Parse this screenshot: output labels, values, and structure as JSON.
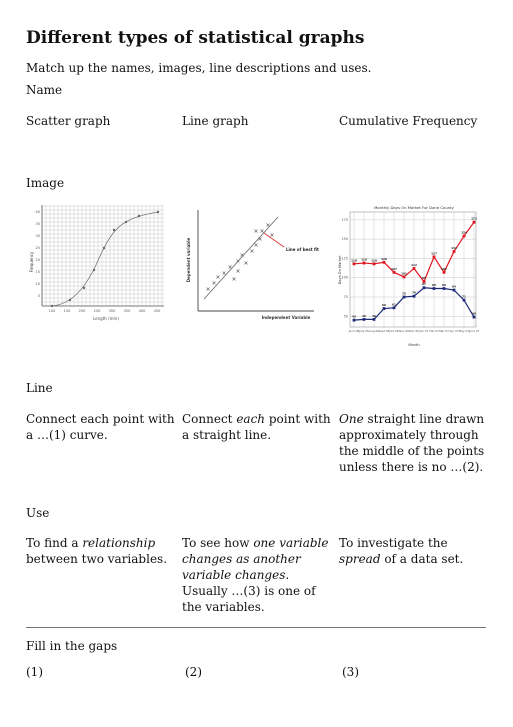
{
  "title": "Different types of statistical graphs",
  "instruction": "Match up the names, images, line descriptions and uses.",
  "sections": {
    "name": "Name",
    "image": "Image",
    "line": "Line",
    "use": "Use",
    "fill": "Fill in the gaps"
  },
  "names": [
    "Scatter graph",
    "Line graph",
    "Cumulative Frequency"
  ],
  "lines": {
    "c1": "Connect each point with a …(1) curve.",
    "c2_pre": "Connect ",
    "c2_em": "each",
    "c2_post": " point with a straight line.",
    "c3_em": "One",
    "c3_post": " straight line drawn approximately through the middle of the points unless there is no …(2)."
  },
  "uses": {
    "c1_pre": "To find a ",
    "c1_em": "relationship",
    "c1_post": " between two variables.",
    "c2_pre": "To see how ",
    "c2_em": "one variable changes as another variable changes.",
    "c2_post": " Usually …(3) is one of the variables.",
    "c3_pre": "To investigate the ",
    "c3_em": "spread",
    "c3_post": " of a data set."
  },
  "gaps": [
    "(1)",
    "(2)",
    "(3)"
  ],
  "graph1": {
    "ylabel": "Frequency",
    "xlabel": "Length (mm)",
    "xticks": [
      "100",
      "150",
      "200",
      "250",
      "300",
      "350",
      "400",
      "450"
    ],
    "yticks": [
      "40",
      "35",
      "30",
      "25",
      "20",
      "15",
      "10",
      "5"
    ]
  },
  "graph2": {
    "ylabel": "Dependent variable",
    "xlabel": "Independent Variable",
    "fit_label": "Line of best fit"
  },
  "graph3": {
    "title": "Monthly Days On Market For Dane County",
    "ylabel": "Days On Market",
    "xlabel": "Month",
    "months": [
      "June 06",
      "July 06",
      "Aug 06",
      "Sept 06",
      "Oct 06",
      "Nov 06",
      "Dec 06",
      "Jan 07",
      "Feb 07",
      "Mar 07",
      "Apr 07",
      "May 07",
      "June 07"
    ],
    "red_values": [
      118,
      119,
      118,
      120,
      107,
      101,
      112,
      95,
      127,
      107,
      134,
      154,
      172
    ],
    "blue_values": [
      45,
      46,
      46,
      60,
      61,
      75,
      76,
      87,
      86,
      86,
      84,
      71,
      49
    ],
    "ytick_labels": [
      "175",
      "150",
      "125",
      "100",
      "75",
      "50"
    ],
    "red_color": "#e0141e",
    "blue_color": "#1e2a78"
  }
}
